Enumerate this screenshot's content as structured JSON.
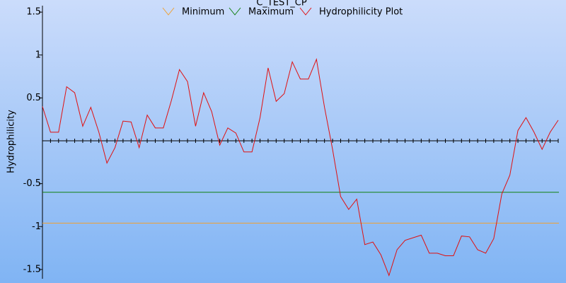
{
  "chart_data": {
    "type": "line",
    "title": "C_TEST_CP",
    "y_label": "Hydrophilicity",
    "x": [
      1,
      2,
      3,
      4,
      5,
      6,
      7,
      8,
      9,
      10,
      11,
      12,
      13,
      14,
      15,
      16,
      17,
      18,
      19,
      20,
      21,
      22,
      23,
      24,
      25,
      26,
      27,
      28,
      29,
      30,
      31,
      32,
      33,
      34,
      35,
      36,
      37,
      38,
      39,
      40,
      41,
      42,
      43,
      44,
      45,
      46,
      47,
      48,
      49,
      50,
      51,
      52,
      53,
      54,
      55,
      56,
      57,
      58,
      59,
      60,
      61,
      62,
      63,
      64,
      65
    ],
    "xlim": [
      1,
      65
    ],
    "ylim": [
      -1.6,
      1.6
    ],
    "yticks": [
      -1.5,
      -1,
      -0.5,
      0.5,
      1,
      1.5
    ],
    "series": [
      {
        "name": "Minimum",
        "color": "#f0a030",
        "value": -0.96
      },
      {
        "name": "Maximum",
        "color": "#108010",
        "value": -0.6
      },
      {
        "name": "Hydrophilicity Plot",
        "color": "#e01010",
        "values": [
          0.4,
          0.1,
          0.1,
          0.63,
          0.56,
          0.17,
          0.39,
          0.1,
          -0.26,
          -0.08,
          0.23,
          0.22,
          -0.08,
          0.3,
          0.15,
          0.15,
          0.47,
          0.83,
          0.69,
          0.17,
          0.56,
          0.34,
          -0.05,
          0.15,
          0.09,
          -0.13,
          -0.13,
          0.27,
          0.85,
          0.46,
          0.55,
          0.92,
          0.72,
          0.72,
          0.95,
          0.39,
          -0.1,
          -0.65,
          -0.8,
          -0.68,
          -1.21,
          -1.18,
          -1.33,
          -1.57,
          -1.27,
          -1.16,
          -1.13,
          -1.1,
          -1.31,
          -1.31,
          -1.34,
          -1.34,
          -1.11,
          -1.12,
          -1.27,
          -1.31,
          -1.14,
          -0.62,
          -0.4,
          0.12,
          0.27,
          0.1,
          -0.1,
          0.1,
          0.24
        ]
      }
    ]
  }
}
